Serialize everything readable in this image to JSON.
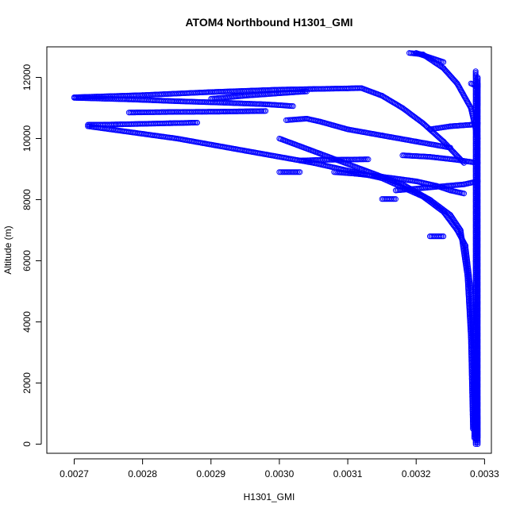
{
  "chart_data": {
    "type": "scatter",
    "title": "ATOM4 Northbound H1301_GMI",
    "xlabel": "H1301_GMI",
    "ylabel": "Altitude (m)",
    "xlim": [
      0.00266,
      0.00331
    ],
    "ylim": [
      -300,
      13000
    ],
    "x_ticks": [
      "0.0027",
      "0.0028",
      "0.0029",
      "0.0030",
      "0.0031",
      "0.0032",
      "0.0033"
    ],
    "y_ticks": [
      "0",
      "2000",
      "4000",
      "6000",
      "8000",
      "10000",
      "12000"
    ],
    "marker": "open-circle",
    "grid": false,
    "series": [
      {
        "color": "#0000ff",
        "segments": [
          {
            "x": [
              0.003287,
              0.003287,
              0.003287
            ],
            "y": [
              0,
              6000,
              12200
            ]
          },
          {
            "x": [
              0.00329,
              0.003289,
              0.00329
            ],
            "y": [
              0,
              6500,
              11800
            ]
          },
          {
            "x": [
              0.003285,
              0.003284,
              0.00328,
              0.003272
            ],
            "y": [
              200,
              3000,
              5000,
              6500
            ]
          },
          {
            "x": [
              0.003283,
              0.00328,
              0.003275,
              0.003265
            ],
            "y": [
              500,
              3500,
              5500,
              7000
            ]
          },
          {
            "x": [
              0.003272,
              0.00326,
              0.00324,
              0.00321,
              0.00315,
              0.00305,
              0.00295,
              0.00285,
              0.00272
            ],
            "y": [
              6500,
              7000,
              7600,
              8100,
              8700,
              9200,
              9600,
              10000,
              10400
            ]
          },
          {
            "x": [
              0.003265,
              0.00325,
              0.00322,
              0.00318,
              0.00312,
              0.00306,
              0.003
            ],
            "y": [
              7000,
              7500,
              8000,
              8500,
              9000,
              9500,
              10000
            ]
          },
          {
            "x": [
              0.00272,
              0.00276,
              0.0028,
              0.00284,
              0.00288
            ],
            "y": [
              10450,
              10460,
              10480,
              10500,
              10520
            ]
          },
          {
            "x": [
              0.0027,
              0.0028,
              0.0029,
              0.003,
              0.00305,
              0.0031,
              0.00312
            ],
            "y": [
              11350,
              11420,
              11520,
              11600,
              11620,
              11640,
              11650
            ]
          },
          {
            "x": [
              0.00312,
              0.00315,
              0.00318,
              0.00321,
              0.00324,
              0.00327
            ],
            "y": [
              11650,
              11400,
              11000,
              10500,
              9900,
              9200
            ]
          },
          {
            "x": [
              0.0027,
              0.00278,
              0.00285,
              0.00292,
              0.00298,
              0.00302
            ],
            "y": [
              11330,
              11280,
              11220,
              11170,
              11120,
              11060
            ]
          },
          {
            "x": [
              0.00278,
              0.00285,
              0.00292,
              0.00298
            ],
            "y": [
              10850,
              10870,
              10880,
              10900
            ]
          },
          {
            "x": [
              0.0029,
              0.00295,
              0.003,
              0.00304
            ],
            "y": [
              11300,
              11400,
              11480,
              11540
            ]
          },
          {
            "x": [
              0.00301,
              0.00304,
              0.00306,
              0.0031,
              0.00315,
              0.0032,
              0.00325
            ],
            "y": [
              10600,
              10650,
              10550,
              10300,
              10100,
              9900,
              9700
            ]
          },
          {
            "x": [
              0.003,
              0.00303
            ],
            "y": [
              8900,
              8900
            ]
          },
          {
            "x": [
              0.00303,
              0.00306,
              0.0031,
              0.00313
            ],
            "y": [
              9280,
              9300,
              9310,
              9320
            ]
          },
          {
            "x": [
              0.00308,
              0.00311,
              0.00315,
              0.0032,
              0.00323,
              0.00325,
              0.00327
            ],
            "y": [
              8900,
              8850,
              8750,
              8600,
              8450,
              8300,
              8200
            ]
          },
          {
            "x": [
              0.00315,
              0.00317
            ],
            "y": [
              8020,
              8020
            ]
          },
          {
            "x": [
              0.00318,
              0.00322,
              0.00326,
              0.00329
            ],
            "y": [
              9450,
              9400,
              9300,
              9200
            ]
          },
          {
            "x": [
              0.00317,
              0.00322,
              0.00327,
              0.00329
            ],
            "y": [
              8300,
              8400,
              8500,
              8600
            ]
          },
          {
            "x": [
              0.00322,
              0.00324
            ],
            "y": [
              6800,
              6800
            ]
          },
          {
            "x": [
              0.00319,
              0.00321,
              0.00324,
              0.00326,
              0.00328,
              0.00329
            ],
            "y": [
              12800,
              12750,
              12300,
              11800,
              11000,
              10000
            ]
          },
          {
            "x": [
              0.0032,
              0.00324
            ],
            "y": [
              12800,
              12500
            ]
          },
          {
            "x": [
              0.00322,
              0.00325,
              0.00328,
              0.00329
            ],
            "y": [
              10300,
              10400,
              10450,
              10500
            ]
          },
          {
            "x": [
              0.00328,
              0.00329
            ],
            "y": [
              11800,
              11700
            ]
          },
          {
            "x": [
              0.00329,
              0.00329
            ],
            "y": [
              200,
              12000
            ]
          }
        ]
      }
    ]
  }
}
